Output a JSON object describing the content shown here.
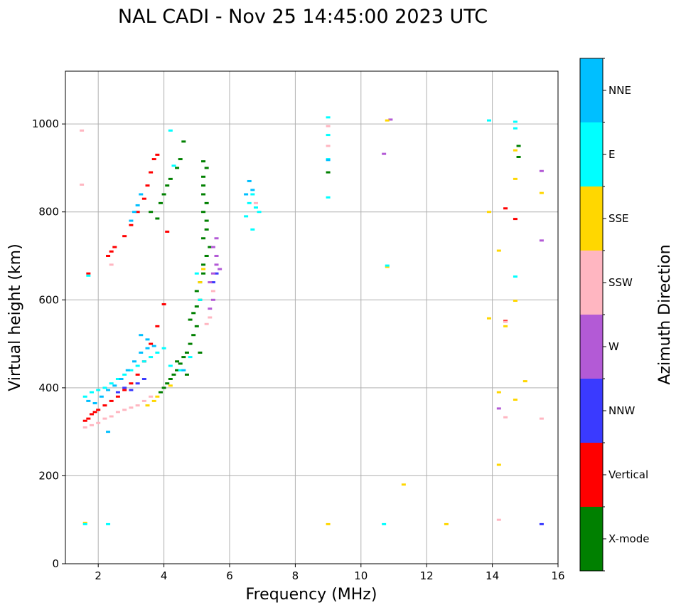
{
  "chart_data": {
    "type": "scatter",
    "title": "NAL CADI - Nov 25 14:45:00 2023 UTC",
    "xlabel": "Frequency (MHz)",
    "ylabel": "Virtual height (km)",
    "xlim": [
      1,
      16
    ],
    "ylim": [
      0,
      1120
    ],
    "xticks": [
      2,
      4,
      6,
      8,
      10,
      12,
      14,
      16
    ],
    "yticks": [
      0,
      200,
      400,
      600,
      800,
      1000
    ],
    "xtick_labels": [
      "2",
      "4",
      "6",
      "8",
      "10",
      "12",
      "14",
      "16"
    ],
    "ytick_labels": [
      "0",
      "200",
      "400",
      "600",
      "800",
      "1000"
    ],
    "grid": true,
    "colorbar": {
      "label": "Azimuth Direction",
      "categories": [
        "X-mode",
        "Vertical",
        "NNW",
        "W",
        "SSW",
        "SSE",
        "E",
        "NNE"
      ],
      "colors": {
        "X-mode": "#008000",
        "Vertical": "#ff0000",
        "NNW": "#3a3aff",
        "W": "#b35ad6",
        "SSW": "#ffb6c1",
        "SSE": "#ffd700",
        "E": "#00ffff",
        "NNE": "#00bfff"
      }
    },
    "series": [
      {
        "name": "X-mode",
        "points": [
          [
            3.6,
            800
          ],
          [
            3.8,
            785
          ],
          [
            3.9,
            820
          ],
          [
            4.0,
            840
          ],
          [
            4.1,
            860
          ],
          [
            4.2,
            875
          ],
          [
            4.4,
            900
          ],
          [
            4.5,
            920
          ],
          [
            4.6,
            960
          ],
          [
            3.9,
            390
          ],
          [
            4.0,
            400
          ],
          [
            4.1,
            410
          ],
          [
            4.2,
            420
          ],
          [
            4.3,
            430
          ],
          [
            4.4,
            440
          ],
          [
            4.5,
            455
          ],
          [
            4.6,
            470
          ],
          [
            4.7,
            480
          ],
          [
            4.8,
            500
          ],
          [
            4.9,
            520
          ],
          [
            5.0,
            540
          ],
          [
            4.8,
            555
          ],
          [
            4.9,
            570
          ],
          [
            5.0,
            585
          ],
          [
            5.1,
            600
          ],
          [
            5.0,
            620
          ],
          [
            5.1,
            640
          ],
          [
            5.2,
            660
          ],
          [
            5.2,
            680
          ],
          [
            5.3,
            700
          ],
          [
            5.4,
            720
          ],
          [
            5.2,
            740
          ],
          [
            5.3,
            760
          ],
          [
            5.3,
            780
          ],
          [
            5.2,
            800
          ],
          [
            5.3,
            820
          ],
          [
            5.2,
            840
          ],
          [
            5.2,
            860
          ],
          [
            5.2,
            880
          ],
          [
            5.3,
            900
          ],
          [
            5.2,
            915
          ],
          [
            9.0,
            890
          ],
          [
            14.8,
            925
          ],
          [
            14.8,
            950
          ],
          [
            4.4,
            460
          ],
          [
            4.7,
            430
          ],
          [
            5.1,
            480
          ]
        ]
      },
      {
        "name": "Vertical",
        "points": [
          [
            1.6,
            325
          ],
          [
            1.7,
            330
          ],
          [
            1.8,
            340
          ],
          [
            1.9,
            345
          ],
          [
            2.0,
            350
          ],
          [
            2.2,
            360
          ],
          [
            2.4,
            370
          ],
          [
            2.6,
            380
          ],
          [
            2.8,
            395
          ],
          [
            3.0,
            410
          ],
          [
            3.2,
            430
          ],
          [
            3.4,
            460
          ],
          [
            3.6,
            500
          ],
          [
            3.8,
            540
          ],
          [
            4.0,
            590
          ],
          [
            2.3,
            700
          ],
          [
            2.4,
            710
          ],
          [
            2.5,
            720
          ],
          [
            2.8,
            745
          ],
          [
            3.0,
            770
          ],
          [
            3.2,
            800
          ],
          [
            3.4,
            830
          ],
          [
            3.5,
            860
          ],
          [
            3.6,
            890
          ],
          [
            3.7,
            920
          ],
          [
            3.8,
            930
          ],
          [
            4.1,
            755
          ],
          [
            1.7,
            660
          ],
          [
            14.4,
            808
          ],
          [
            14.7,
            784
          ],
          [
            14.4,
            552
          ]
        ]
      },
      {
        "name": "NNW",
        "points": [
          [
            2.6,
            390
          ],
          [
            2.8,
            400
          ],
          [
            3.0,
            395
          ],
          [
            3.2,
            410
          ],
          [
            3.4,
            420
          ],
          [
            5.5,
            640
          ],
          [
            5.6,
            660
          ],
          [
            15.5,
            90
          ]
        ]
      },
      {
        "name": "W",
        "points": [
          [
            5.4,
            640
          ],
          [
            5.5,
            660
          ],
          [
            5.6,
            680
          ],
          [
            5.7,
            670
          ],
          [
            5.6,
            700
          ],
          [
            5.5,
            720
          ],
          [
            5.6,
            740
          ],
          [
            5.5,
            600
          ],
          [
            5.4,
            580
          ],
          [
            15.5,
            893
          ],
          [
            15.5,
            735
          ],
          [
            10.7,
            932
          ],
          [
            10.9,
            1010
          ],
          [
            14.2,
            353
          ]
        ]
      },
      {
        "name": "SSW",
        "points": [
          [
            1.6,
            310
          ],
          [
            1.8,
            315
          ],
          [
            2.0,
            320
          ],
          [
            2.2,
            330
          ],
          [
            2.4,
            335
          ],
          [
            2.6,
            345
          ],
          [
            2.8,
            350
          ],
          [
            3.0,
            355
          ],
          [
            3.2,
            360
          ],
          [
            3.4,
            370
          ],
          [
            3.6,
            380
          ],
          [
            5.3,
            545
          ],
          [
            5.4,
            560
          ],
          [
            5.5,
            620
          ],
          [
            1.5,
            985
          ],
          [
            1.5,
            862
          ],
          [
            6.8,
            820
          ],
          [
            2.4,
            680
          ],
          [
            14.4,
            550
          ],
          [
            14.4,
            333
          ],
          [
            15.5,
            330
          ],
          [
            14.2,
            100
          ],
          [
            9.0,
            995
          ],
          [
            9.0,
            950
          ]
        ]
      },
      {
        "name": "SSE",
        "points": [
          [
            3.5,
            360
          ],
          [
            3.7,
            370
          ],
          [
            3.8,
            380
          ],
          [
            4.2,
            405
          ],
          [
            5.1,
            640
          ],
          [
            5.2,
            670
          ],
          [
            10.8,
            1008
          ],
          [
            14.7,
            940
          ],
          [
            14.7,
            875
          ],
          [
            13.9,
            800
          ],
          [
            14.2,
            712
          ],
          [
            14.7,
            598
          ],
          [
            13.9,
            558
          ],
          [
            14.4,
            540
          ],
          [
            15.0,
            415
          ],
          [
            14.2,
            390
          ],
          [
            14.7,
            373
          ],
          [
            14.2,
            225
          ],
          [
            11.3,
            180
          ],
          [
            9.0,
            90
          ],
          [
            12.6,
            90
          ],
          [
            10.8,
            675
          ],
          [
            15.5,
            843
          ],
          [
            1.6,
            93
          ]
        ]
      },
      {
        "name": "E",
        "points": [
          [
            1.6,
            380
          ],
          [
            1.8,
            390
          ],
          [
            2.0,
            395
          ],
          [
            2.2,
            400
          ],
          [
            2.4,
            410
          ],
          [
            2.6,
            420
          ],
          [
            2.8,
            430
          ],
          [
            3.0,
            440
          ],
          [
            3.2,
            450
          ],
          [
            3.4,
            460
          ],
          [
            3.6,
            470
          ],
          [
            3.8,
            480
          ],
          [
            4.0,
            490
          ],
          [
            4.2,
            450
          ],
          [
            4.5,
            440
          ],
          [
            4.8,
            470
          ],
          [
            5.0,
            660
          ],
          [
            5.1,
            600
          ],
          [
            6.5,
            790
          ],
          [
            6.6,
            820
          ],
          [
            6.7,
            840
          ],
          [
            6.8,
            810
          ],
          [
            6.9,
            800
          ],
          [
            6.7,
            760
          ],
          [
            1.7,
            655
          ],
          [
            4.2,
            985
          ],
          [
            4.3,
            905
          ],
          [
            9.0,
            1015
          ],
          [
            9.0,
            975
          ],
          [
            9.0,
            920
          ],
          [
            9.0,
            833
          ],
          [
            10.8,
            678
          ],
          [
            13.9,
            1008
          ],
          [
            14.7,
            1005
          ],
          [
            14.7,
            990
          ],
          [
            14.7,
            653
          ],
          [
            10.7,
            90
          ],
          [
            2.3,
            90
          ],
          [
            1.6,
            90
          ]
        ]
      },
      {
        "name": "NNE",
        "points": [
          [
            1.7,
            370
          ],
          [
            1.9,
            365
          ],
          [
            2.1,
            380
          ],
          [
            2.3,
            395
          ],
          [
            2.5,
            405
          ],
          [
            2.7,
            420
          ],
          [
            2.9,
            440
          ],
          [
            3.1,
            460
          ],
          [
            3.3,
            480
          ],
          [
            3.5,
            490
          ],
          [
            3.7,
            495
          ],
          [
            3.3,
            520
          ],
          [
            3.5,
            510
          ],
          [
            6.5,
            840
          ],
          [
            6.6,
            870
          ],
          [
            6.7,
            850
          ],
          [
            3.0,
            780
          ],
          [
            3.1,
            800
          ],
          [
            3.2,
            815
          ],
          [
            3.3,
            840
          ],
          [
            9.0,
            918
          ],
          [
            2.3,
            300
          ],
          [
            4.6,
            440
          ]
        ]
      }
    ]
  }
}
